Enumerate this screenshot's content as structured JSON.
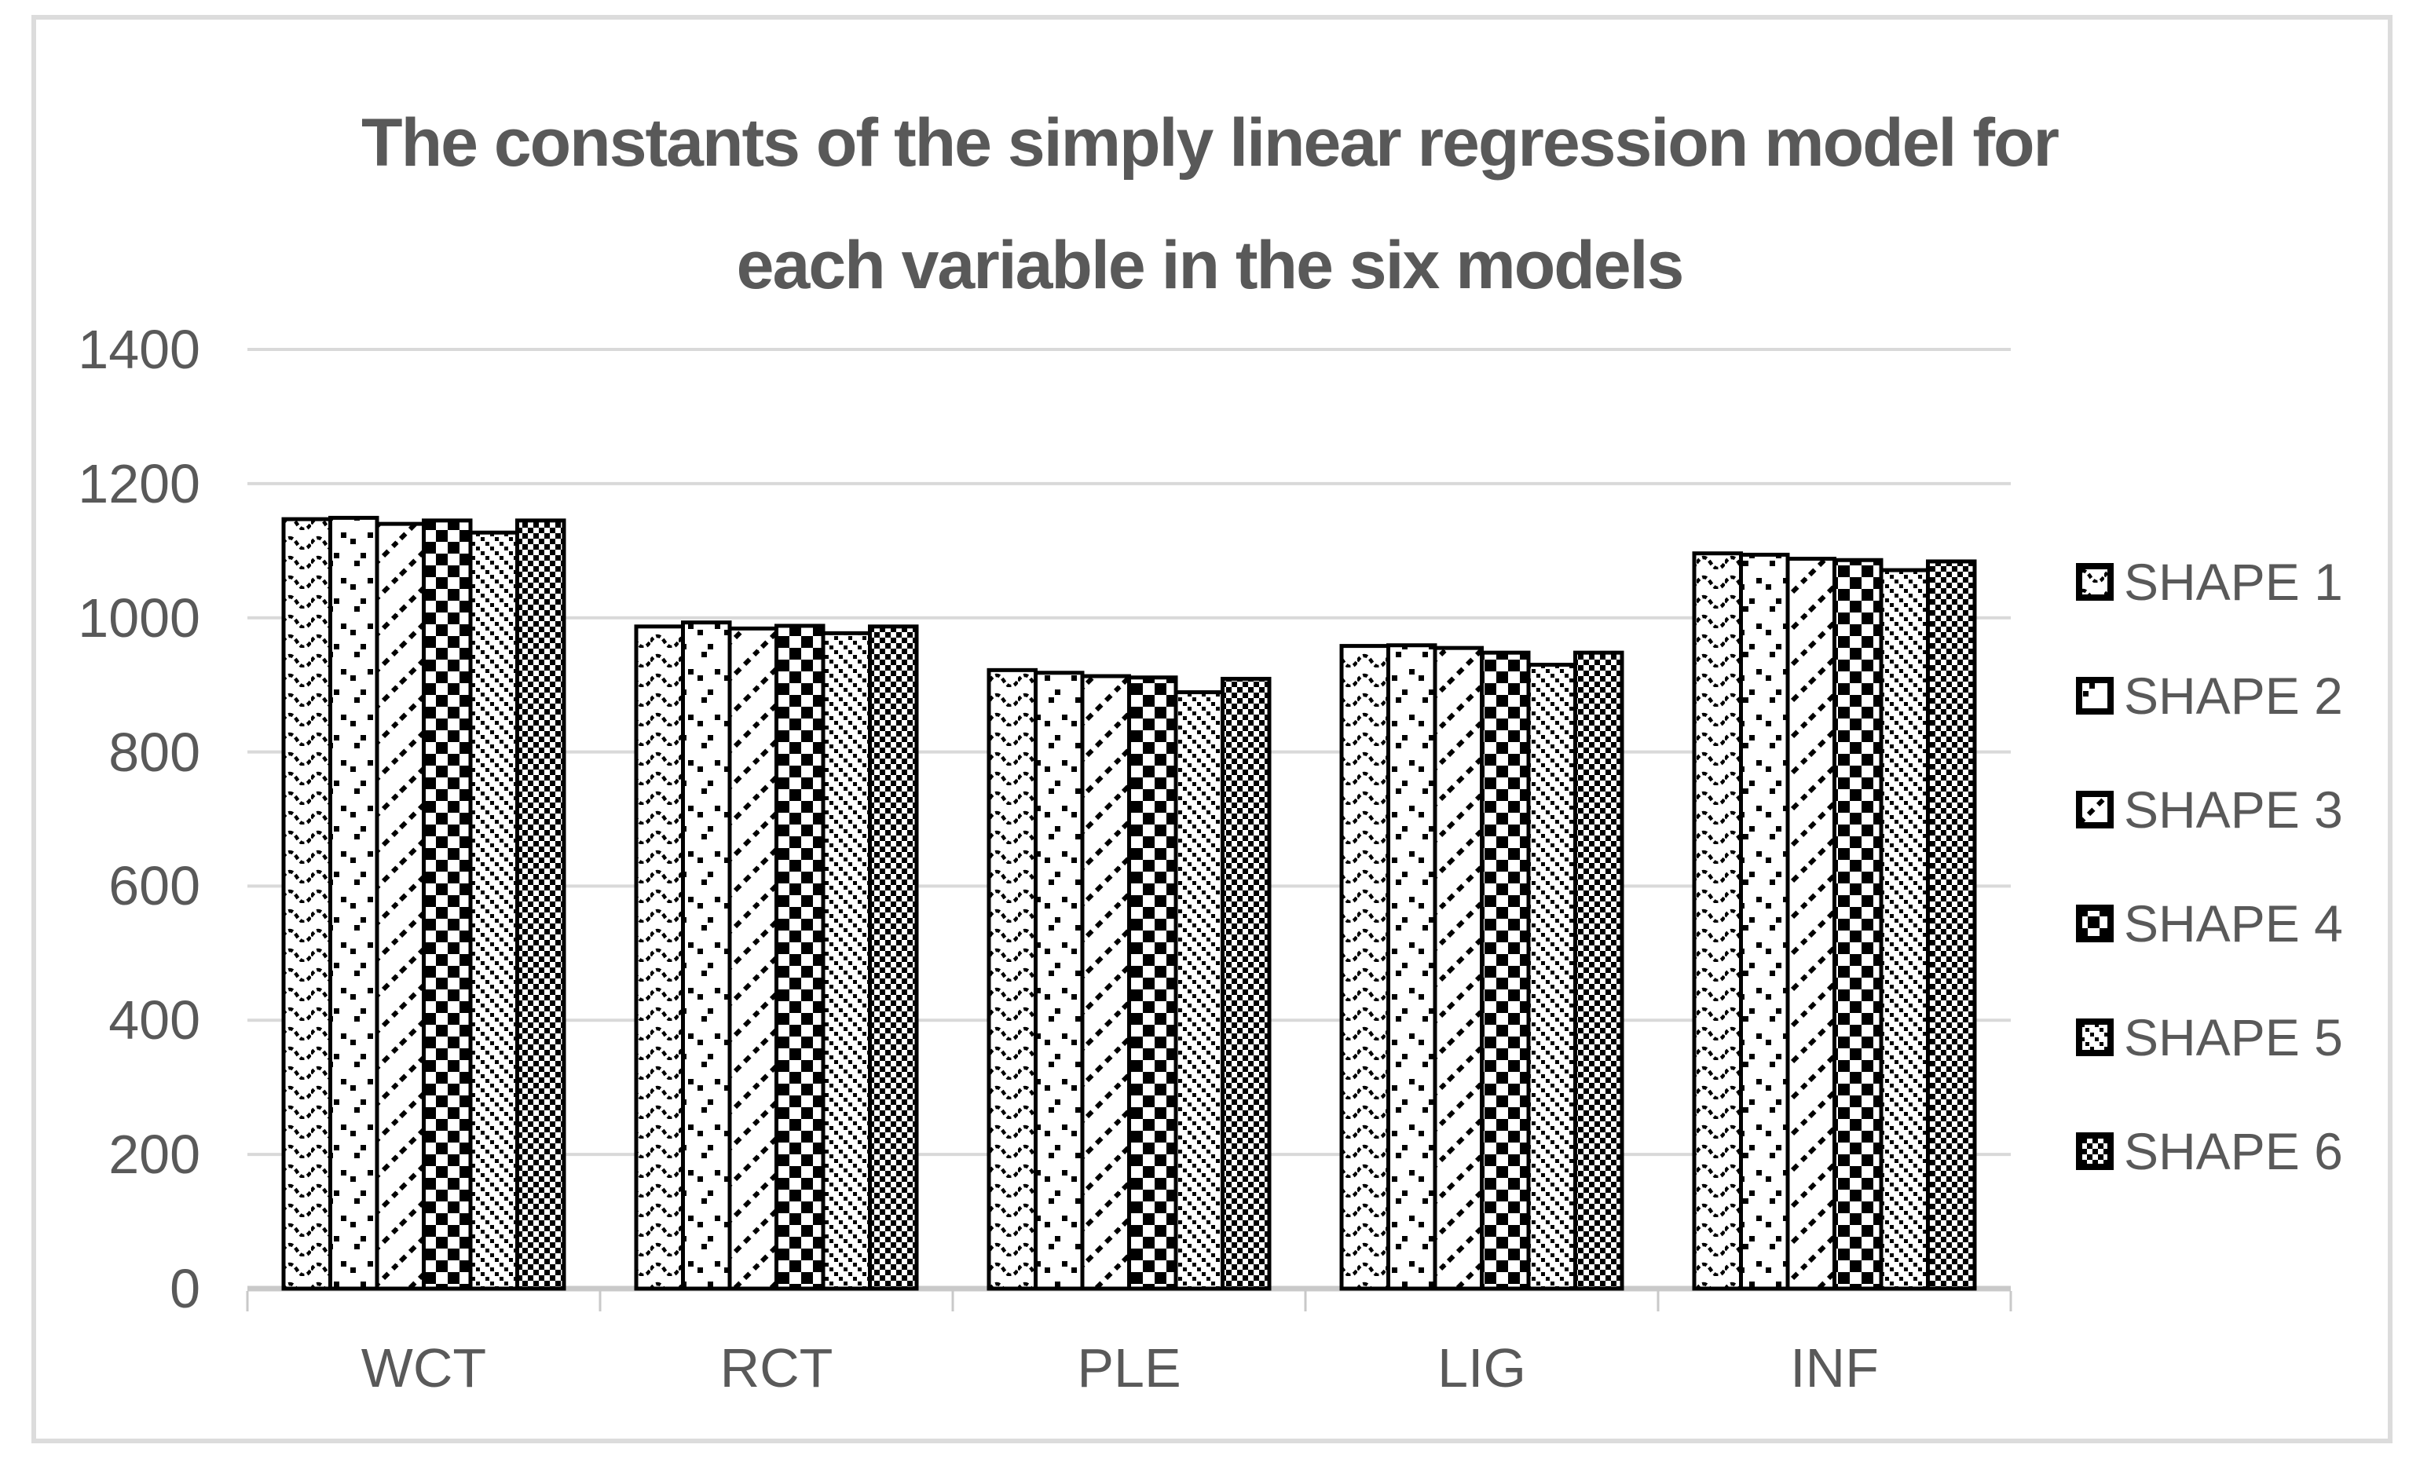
{
  "chart_data": {
    "type": "bar",
    "title": "The constants of the simply linear regression model for each variable in the six models",
    "title_lines": [
      "The constants of the simply linear regression model for",
      "each variable in the six models"
    ],
    "categories": [
      "WCT",
      "RCT",
      "PLE",
      "LIG",
      "INF"
    ],
    "series": [
      {
        "name": "SHAPE 1",
        "pattern": "wave",
        "values": [
          1147,
          987,
          922,
          958,
          1096
        ]
      },
      {
        "name": "SHAPE 2",
        "pattern": "sparse-dots",
        "values": [
          1149,
          993,
          918,
          959,
          1094
        ]
      },
      {
        "name": "SHAPE 3",
        "pattern": "dashed-diagonal-up",
        "values": [
          1140,
          984,
          913,
          955,
          1088
        ]
      },
      {
        "name": "SHAPE 4",
        "pattern": "large-checker",
        "values": [
          1145,
          988,
          911,
          948,
          1086
        ]
      },
      {
        "name": "SHAPE 5",
        "pattern": "dotted-diagonal-down",
        "values": [
          1127,
          977,
          889,
          930,
          1071
        ]
      },
      {
        "name": "SHAPE 6",
        "pattern": "small-checker",
        "values": [
          1145,
          987,
          909,
          948,
          1084
        ]
      }
    ],
    "ylim": [
      0,
      1400
    ],
    "yticks": [
      0,
      200,
      400,
      600,
      800,
      1000,
      1200,
      1400
    ],
    "xlabel": "",
    "ylabel": "",
    "grid": "horizontal",
    "legend_position": "right",
    "bar_style": "monochrome-patterns",
    "colors": {
      "text": "#595959",
      "gridline": "#d9d9d9",
      "axis": "#c9c9c9",
      "bar_stroke": "#000000",
      "bar_fill": "#ffffff",
      "frame": "#dcdcdc",
      "background": "#ffffff"
    }
  }
}
